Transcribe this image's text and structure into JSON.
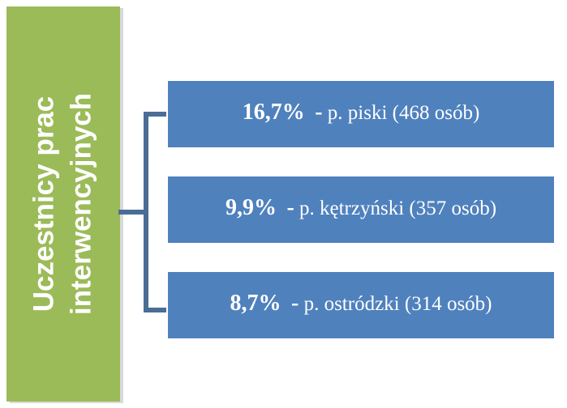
{
  "title": {
    "lines": [
      "Uczestnicy prac",
      "interwencyjnych"
    ]
  },
  "items": [
    {
      "percent": "16,7%",
      "separator": "-",
      "label": "p. piski (468 osób)"
    },
    {
      "percent": "9,9%",
      "separator": "-",
      "label": "p. kętrzyński (357 osób)"
    },
    {
      "percent": "8,7%",
      "separator": "-",
      "label": "p. ostródzki (314 osób)"
    }
  ]
}
